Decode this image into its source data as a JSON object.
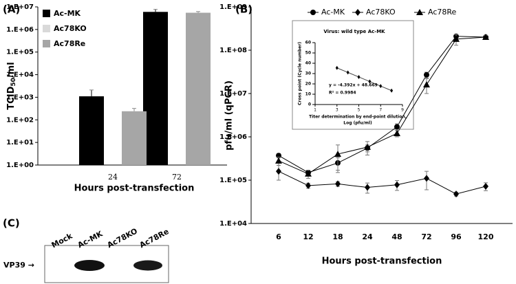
{
  "chart_data": [
    {
      "type": "bar",
      "panel": "(A)",
      "log": true,
      "ylabel": [
        "TCID",
        "50",
        "/ml"
      ],
      "xlabel": "Hours post-transfection",
      "categories": [
        "24",
        "72"
      ],
      "ylim": [
        1,
        10000000
      ],
      "yticks": [
        {
          "value": 1,
          "label": "1.E+00"
        },
        {
          "value": 10,
          "label": "1.E+01"
        },
        {
          "value": 100,
          "label": "1.E+02"
        },
        {
          "value": 1000,
          "label": "1.E+03"
        },
        {
          "value": 10000,
          "label": "1.E+04"
        },
        {
          "value": 100000,
          "label": "1.E+05"
        },
        {
          "value": 1000000,
          "label": "1.E+06"
        },
        {
          "value": 10000000,
          "label": "1.E+07"
        }
      ],
      "series": [
        {
          "name": "Ac-MK",
          "color": "#000000",
          "values": [
            1100,
            6000000
          ],
          "errors": [
            1000,
            1800000
          ]
        },
        {
          "name": "Ac78KO",
          "color": "#d9d9d9",
          "values": [
            null,
            null
          ],
          "errors": [
            null,
            null
          ]
        },
        {
          "name": "Ac78Re",
          "color": "#a6a6a6",
          "values": [
            240,
            5500000
          ],
          "errors": [
            80,
            700000
          ]
        }
      ]
    },
    {
      "type": "line",
      "panel": "(B)",
      "log": true,
      "ylabel": "pfu/ml (qPCR)",
      "xlabel": "Hours post-transfection",
      "categories": [
        "6",
        "12",
        "18",
        "24",
        "48",
        "72",
        "96",
        "120"
      ],
      "ylim": [
        10000,
        1000000000
      ],
      "yticks": [
        {
          "value": 10000,
          "label": "1.E+04"
        },
        {
          "value": 100000,
          "label": "1.E+05"
        },
        {
          "value": 1000000,
          "label": "1.E+06"
        },
        {
          "value": 10000000,
          "label": "1.E+07"
        },
        {
          "value": 100000000,
          "label": "1.E+08"
        },
        {
          "value": 1000000000,
          "label": "1.E+09"
        }
      ],
      "series": [
        {
          "name": "Ac-MK",
          "color": "#000000",
          "marker": "circle",
          "values": [
            370000,
            150000,
            250000,
            550000,
            1700000,
            27000000,
            210000000,
            200000000
          ],
          "errors": [
            40000,
            20000,
            80000,
            100000,
            300000,
            4000000,
            20000000,
            20000000
          ]
        },
        {
          "name": "Ac78KO",
          "color": "#000000",
          "marker": "diamond",
          "values": [
            160000,
            75000,
            82000,
            68000,
            78000,
            110000,
            48000,
            72000
          ],
          "errors": [
            60000,
            10000,
            10000,
            18000,
            20000,
            50000,
            5000,
            15000
          ]
        },
        {
          "name": "Ac78Re",
          "color": "#000000",
          "marker": "triangle",
          "values": [
            280000,
            140000,
            400000,
            580000,
            1200000,
            16000000,
            180000000,
            200000000
          ],
          "errors": [
            60000,
            30000,
            250000,
            200000,
            200000,
            6000000,
            50000000,
            20000000
          ]
        }
      ]
    },
    {
      "type": "scatter",
      "title": "Virus: wild type Ac-MK",
      "xlabel": [
        "Titer determination by end-point dilution,",
        "Log (pfu/ml)"
      ],
      "ylabel": "Cross point (Cycle number)",
      "annotations": [
        "y = -4.392x + 48.669",
        "R² = 0.9984"
      ],
      "x": [
        3,
        4,
        5,
        6,
        7,
        8
      ],
      "values": [
        35.5,
        31.1,
        26.7,
        22.3,
        17.9,
        13.5
      ],
      "xlim": [
        1,
        9
      ],
      "xticks": [
        1,
        3,
        5,
        7,
        9
      ],
      "ylim": [
        0,
        60
      ],
      "yticks": [
        0,
        10,
        20,
        30,
        40,
        50,
        60
      ]
    }
  ],
  "blot": {
    "panel": "(C)",
    "lanes": [
      "Mock",
      "Ac-MK",
      "Ac78KO",
      "Ac78Re"
    ],
    "protein": "VP39 →"
  }
}
